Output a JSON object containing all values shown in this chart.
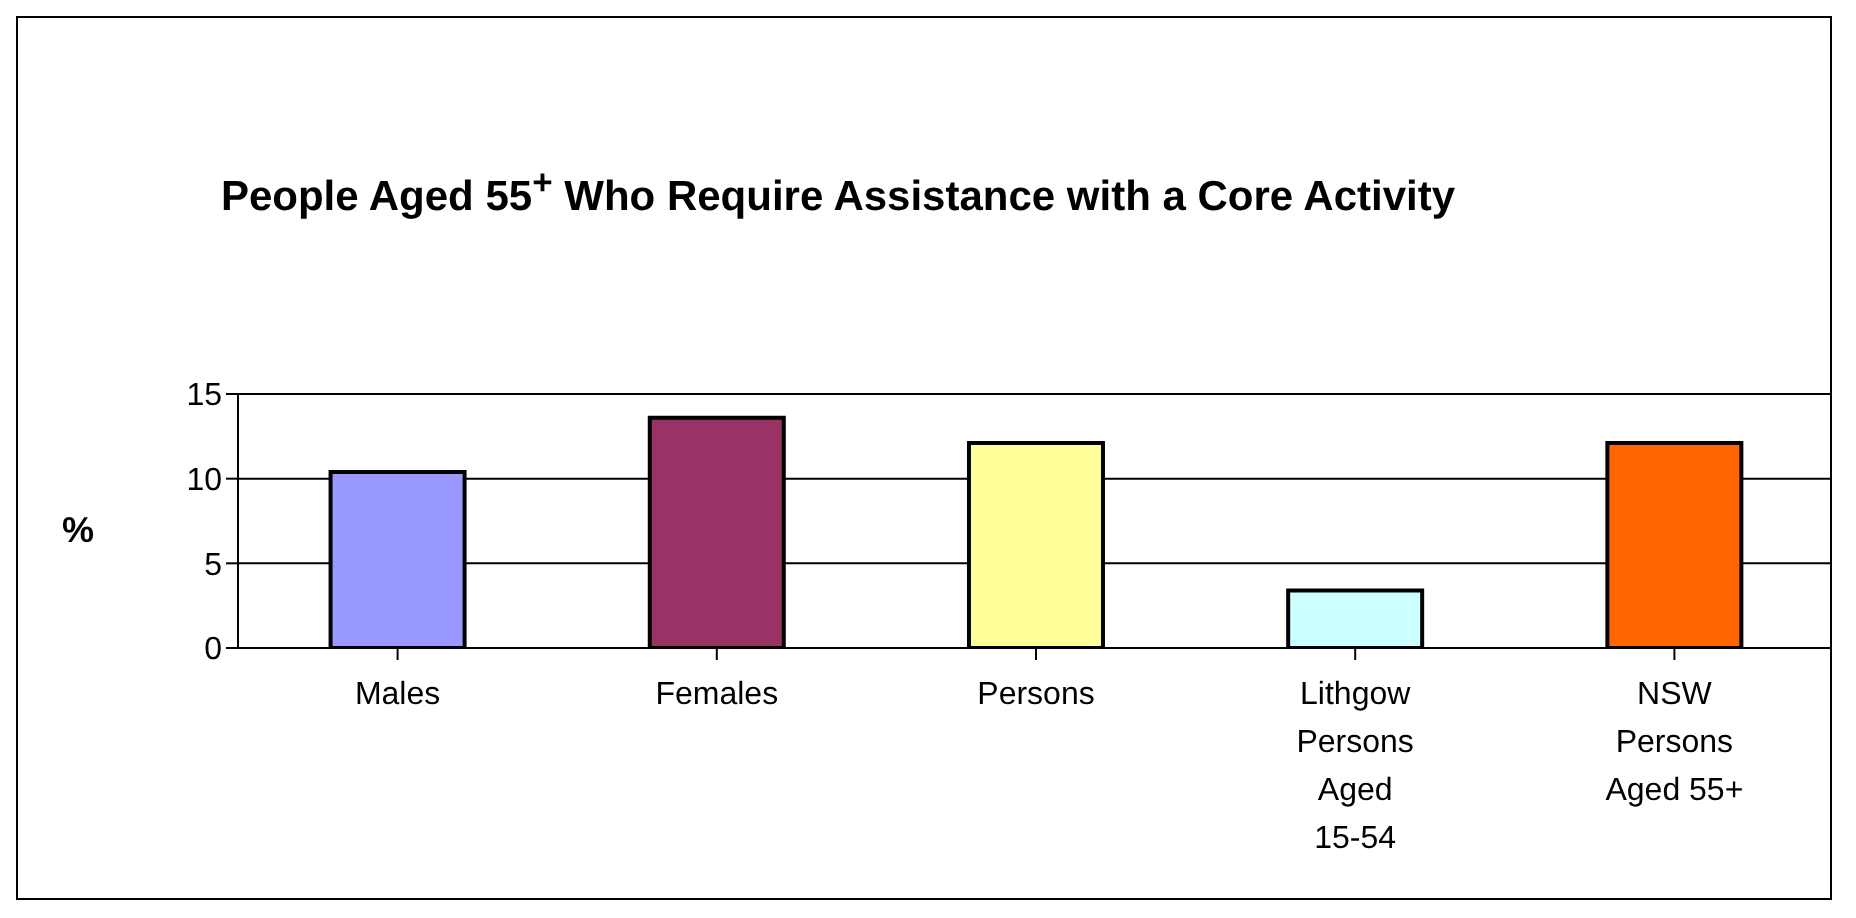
{
  "chart_data": {
    "type": "bar",
    "title": "People Aged 55$^{+}$ Who Require Assistance with a Core Activity",
    "ylabel": "%",
    "categories": [
      "Males",
      "Females",
      "Persons",
      "Lithgow Persons Aged 15-54",
      "NSW Persons Aged 55+"
    ],
    "values": [
      10.4,
      13.6,
      12.1,
      3.4,
      12.1
    ],
    "colors": [
      "#9999ff",
      "#993366",
      "#ffff99",
      "#ccffff",
      "#ff6600"
    ],
    "ylim": [
      0,
      15
    ],
    "yticks": [
      0,
      5,
      10,
      15
    ],
    "grid": "y",
    "legend": false
  }
}
